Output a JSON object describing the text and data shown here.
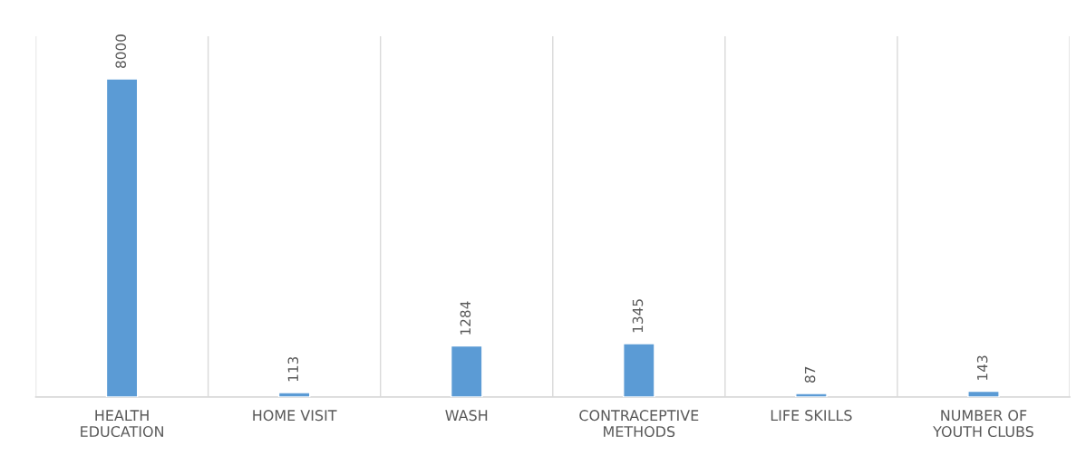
{
  "chart_data": {
    "type": "bar",
    "categories": [
      "HEALTH\nEDUCATION",
      "HOME VISIT",
      "WASH",
      "CONTRACEPTIVE\nMETHODS",
      "LIFE SKILLS",
      "NUMBER OF\nYOUTH CLUBS"
    ],
    "values": [
      8000,
      113,
      1284,
      1345,
      87,
      143
    ],
    "color": "#5b9bd5",
    "data_labels": true,
    "grid": "x"
  }
}
